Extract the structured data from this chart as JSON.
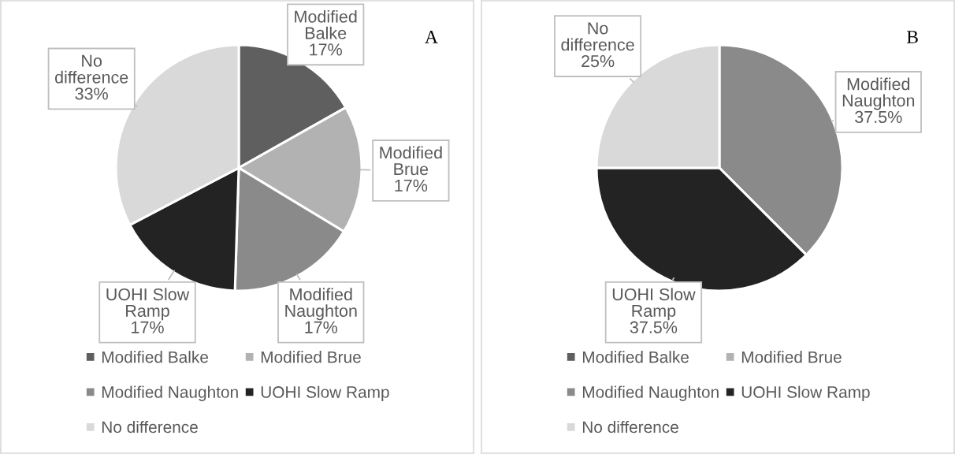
{
  "chart_data": [
    {
      "type": "pie",
      "title": "A",
      "categories": [
        "Modified Balke",
        "Modified Brue",
        "Modified Naughton",
        "UOHI Slow Ramp",
        "No difference"
      ],
      "values": [
        17,
        17,
        17,
        17,
        33
      ],
      "colors": [
        "#5f5f5f",
        "#b2b2b2",
        "#8a8a8a",
        "#232323",
        "#d9d9d9"
      ],
      "value_labels": [
        "17%",
        "17%",
        "17%",
        "17%",
        "33%"
      ],
      "legend": "bottom"
    },
    {
      "type": "pie",
      "title": "B",
      "categories": [
        "Modified Balke",
        "Modified Brue",
        "Modified Naughton",
        "UOHI Slow Ramp",
        "No difference"
      ],
      "values": [
        0,
        0,
        37.5,
        37.5,
        25
      ],
      "colors": [
        "#5f5f5f",
        "#b2b2b2",
        "#8a8a8a",
        "#232323",
        "#d9d9d9"
      ],
      "value_labels": [
        null,
        null,
        "37.5%",
        "37.5%",
        "25%"
      ],
      "legend": "bottom"
    }
  ]
}
